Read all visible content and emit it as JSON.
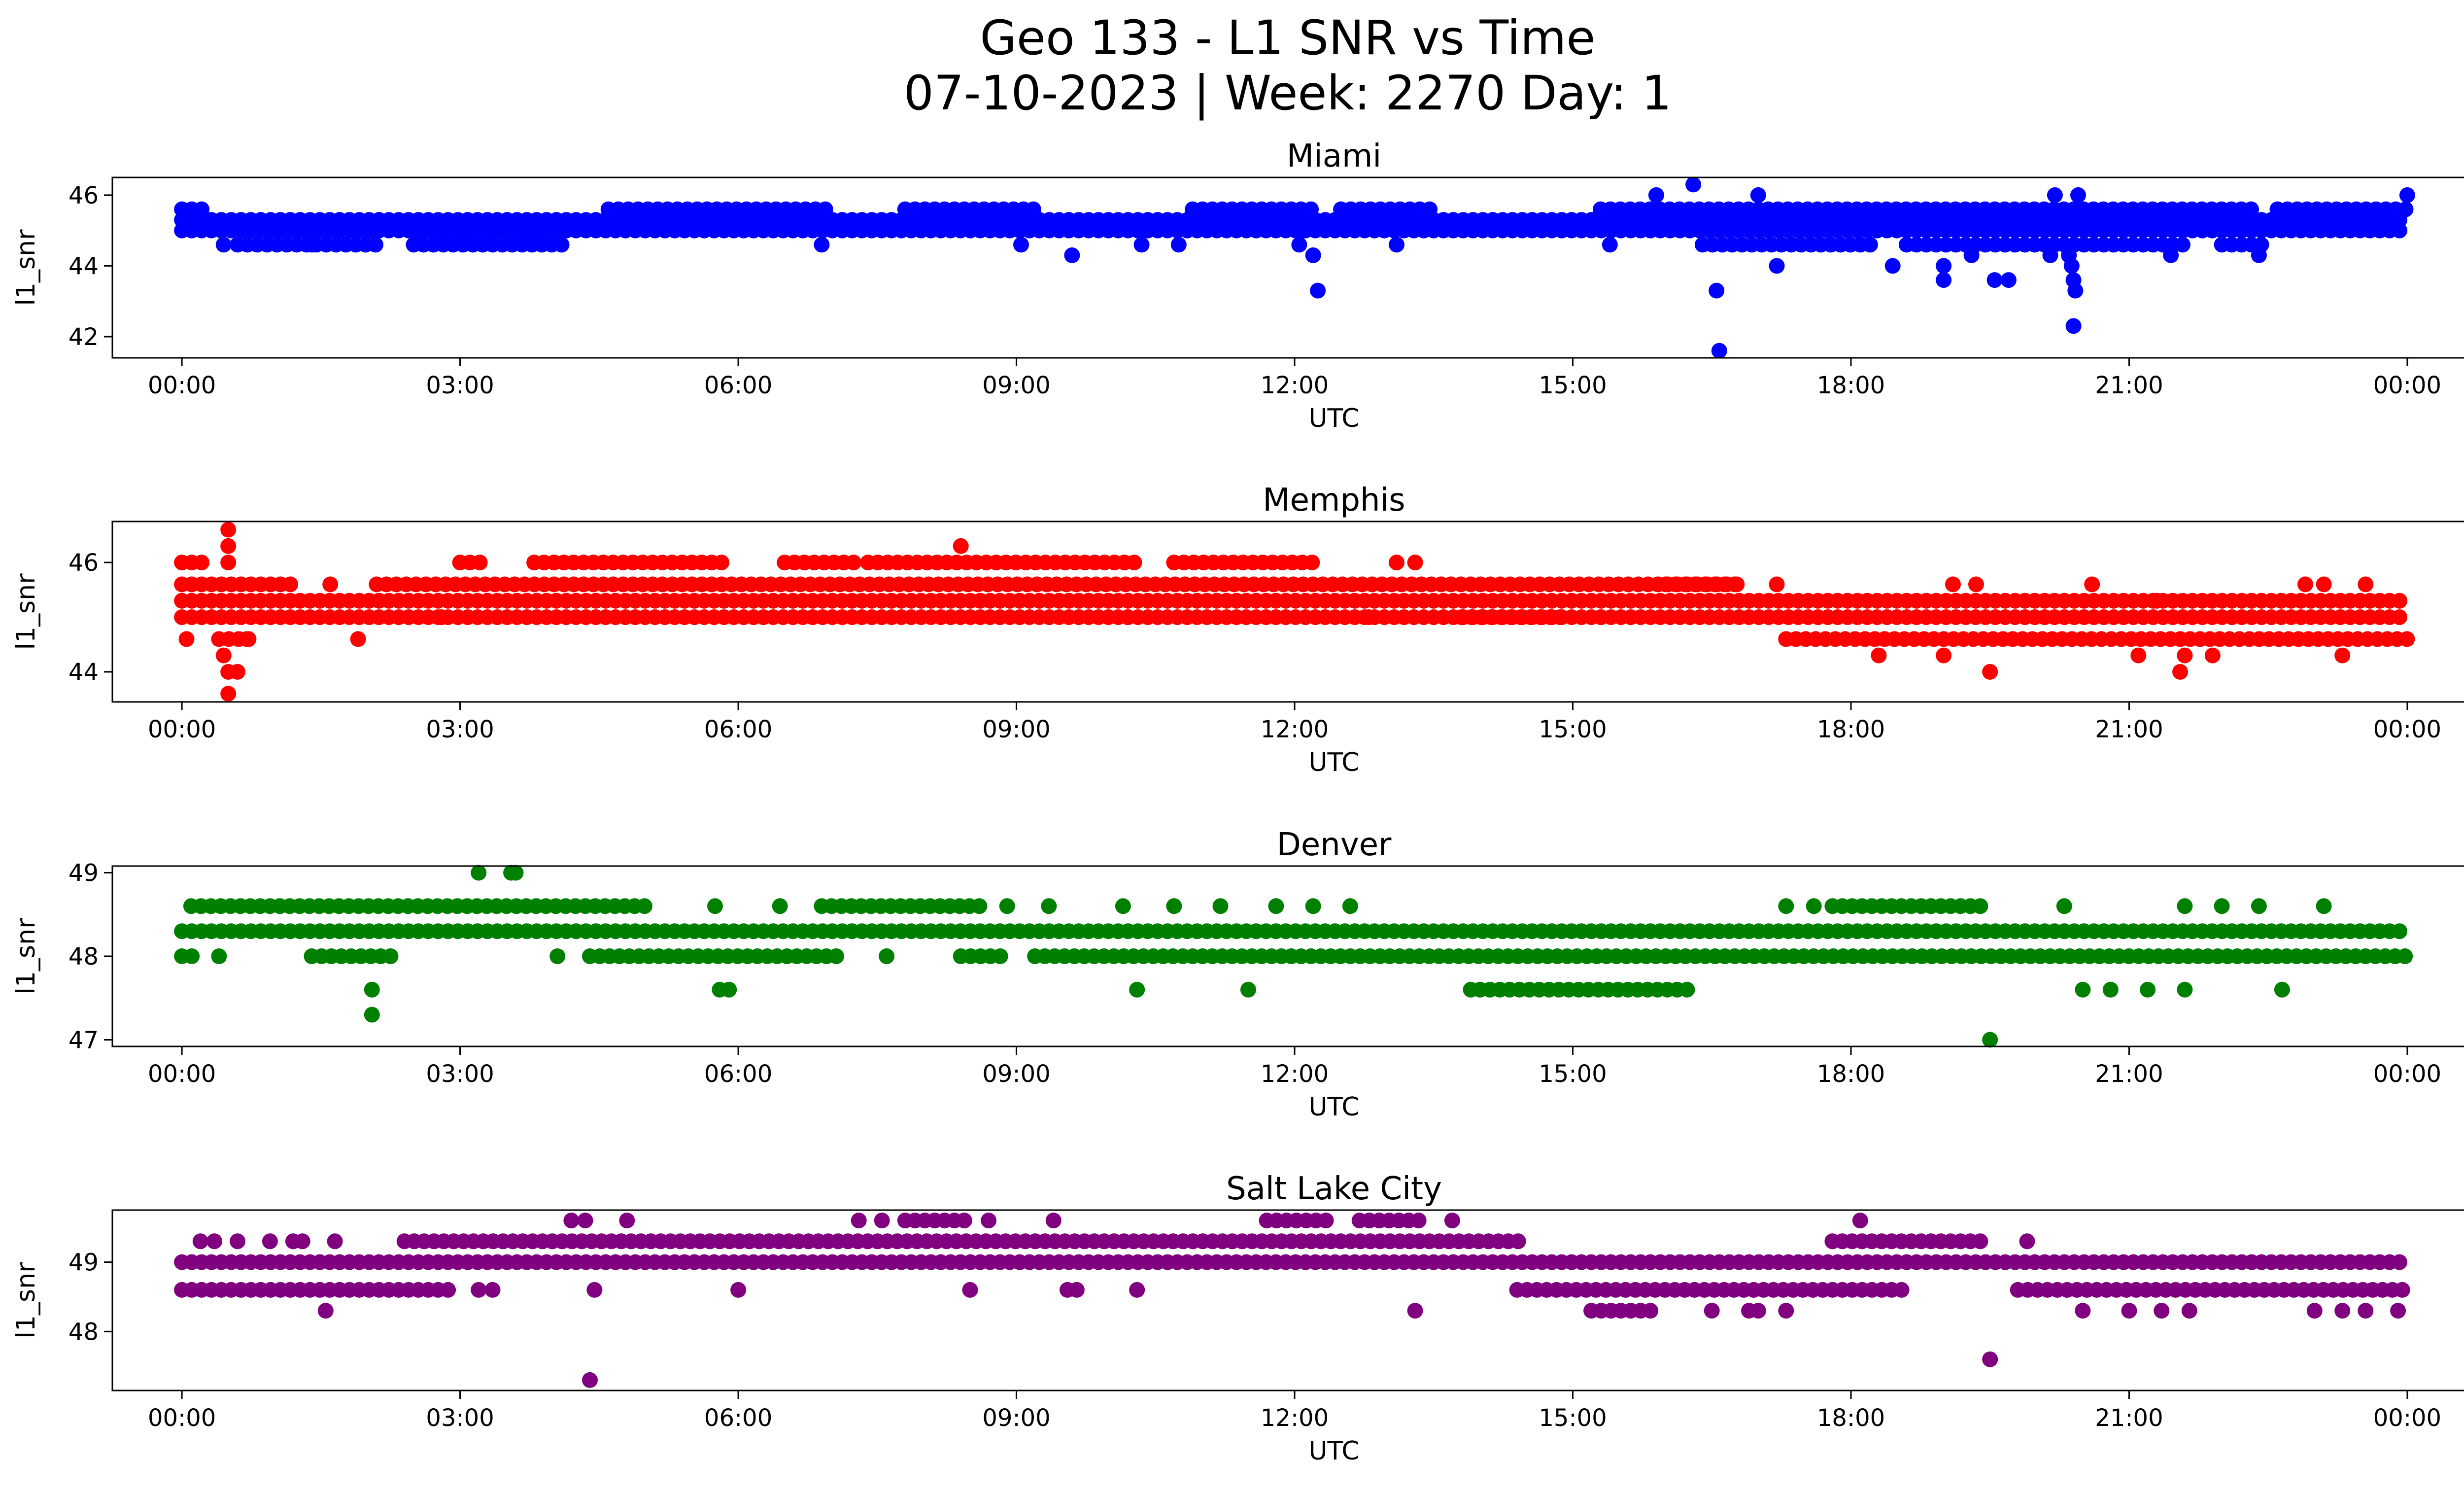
{
  "figure": {
    "title_line1": "Geo 133 - L1 SNR vs Time",
    "title_line2": "07-10-2023 | Week: 2270 Day: 1"
  },
  "chart_data": [
    {
      "type": "scatter",
      "title": "Miami",
      "xlabel": "UTC",
      "ylabel": "l1_snr",
      "color": "#0000ff",
      "xlim": [
        -0.75,
        25.6
      ],
      "ylim": [
        41.4,
        46.5
      ],
      "xticks": [
        0,
        3,
        6,
        9,
        12,
        15,
        18,
        21,
        24
      ],
      "xtick_labels": [
        "00:00",
        "03:00",
        "06:00",
        "09:00",
        "12:00",
        "15:00",
        "18:00",
        "21:00",
        "00:00"
      ],
      "yticks": [
        42,
        44,
        46
      ],
      "ytick_labels": [
        "42",
        "44",
        "46"
      ],
      "bands": [
        {
          "y": 45.0,
          "from": 0,
          "to": 24
        },
        {
          "y": 45.3,
          "from": 0,
          "to": 24
        },
        {
          "y": 45.6,
          "from": 0,
          "to": 0.3
        },
        {
          "y": 45.6,
          "from": 4.6,
          "to": 7.0
        },
        {
          "y": 45.6,
          "from": 7.8,
          "to": 9.2
        },
        {
          "y": 45.6,
          "from": 10.9,
          "to": 12.2
        },
        {
          "y": 45.6,
          "from": 12.5,
          "to": 13.5
        },
        {
          "y": 45.6,
          "from": 15.3,
          "to": 22.4
        },
        {
          "y": 45.6,
          "from": 22.6,
          "to": 24
        },
        {
          "y": 44.6,
          "from": 0.6,
          "to": 2.1
        },
        {
          "y": 44.6,
          "from": 2.5,
          "to": 4.2
        },
        {
          "y": 44.6,
          "from": 16.4,
          "to": 18.3
        },
        {
          "y": 44.6,
          "from": 18.6,
          "to": 21.6
        },
        {
          "y": 44.6,
          "from": 22.0,
          "to": 22.5
        }
      ],
      "points": [
        [
          0.45,
          44.6
        ],
        [
          1.4,
          44.6
        ],
        [
          6.9,
          44.6
        ],
        [
          9.05,
          44.6
        ],
        [
          9.6,
          44.3
        ],
        [
          10.35,
          44.6
        ],
        [
          10.75,
          44.6
        ],
        [
          12.05,
          44.6
        ],
        [
          12.2,
          44.3
        ],
        [
          12.25,
          43.3
        ],
        [
          13.1,
          44.6
        ],
        [
          15.4,
          44.6
        ],
        [
          15.9,
          46.0
        ],
        [
          16.3,
          46.3
        ],
        [
          16.55,
          43.3
        ],
        [
          16.58,
          41.6
        ],
        [
          17.0,
          46.0
        ],
        [
          17.2,
          44.0
        ],
        [
          18.45,
          44.0
        ],
        [
          19.0,
          44.0
        ],
        [
          19.0,
          43.6
        ],
        [
          19.3,
          44.3
        ],
        [
          19.55,
          43.6
        ],
        [
          19.7,
          43.6
        ],
        [
          20.15,
          44.3
        ],
        [
          20.35,
          44.3
        ],
        [
          20.38,
          44.0
        ],
        [
          20.4,
          43.6
        ],
        [
          20.42,
          43.3
        ],
        [
          20.4,
          42.3
        ],
        [
          20.2,
          46.0
        ],
        [
          20.45,
          46.0
        ],
        [
          21.45,
          44.3
        ],
        [
          22.4,
          44.3
        ],
        [
          24.0,
          46.0
        ]
      ]
    },
    {
      "type": "scatter",
      "title": "Memphis",
      "xlabel": "UTC",
      "ylabel": "l1_snr",
      "color": "#ff0000",
      "xlim": [
        -0.75,
        25.6
      ],
      "ylim": [
        43.45,
        46.75
      ],
      "xticks": [
        0,
        3,
        6,
        9,
        12,
        15,
        18,
        21,
        24
      ],
      "xtick_labels": [
        "00:00",
        "03:00",
        "06:00",
        "09:00",
        "12:00",
        "15:00",
        "18:00",
        "21:00",
        "00:00"
      ],
      "yticks": [
        44,
        46
      ],
      "ytick_labels": [
        "44",
        "46"
      ],
      "bands": [
        {
          "y": 45.0,
          "from": 0,
          "to": 24
        },
        {
          "y": 45.3,
          "from": 0,
          "to": 24
        },
        {
          "y": 45.6,
          "from": 0,
          "to": 1.2
        },
        {
          "y": 45.6,
          "from": 2.1,
          "to": 16.8
        },
        {
          "y": 44.6,
          "from": 17.3,
          "to": 24
        },
        {
          "y": 46.0,
          "from": 3.8,
          "to": 5.9
        },
        {
          "y": 46.0,
          "from": 6.5,
          "to": 7.3
        },
        {
          "y": 46.0,
          "from": 7.4,
          "to": 10.3
        },
        {
          "y": 46.0,
          "from": 10.7,
          "to": 12.2
        },
        {
          "y": 44.6,
          "from": 0.4,
          "to": 0.8
        },
        {
          "y": 45.0,
          "from": 13.8,
          "to": 14.9
        },
        {
          "y": 46.0,
          "from": 0,
          "to": 0.25
        },
        {
          "y": 45.6,
          "from": 16.0,
          "to": 16.8
        },
        {
          "y": 46.0,
          "from": 3.0,
          "to": 3.3
        }
      ],
      "points": [
        [
          0.05,
          44.6
        ],
        [
          0.45,
          44.3
        ],
        [
          0.5,
          44.0
        ],
        [
          0.5,
          46.0
        ],
        [
          0.5,
          46.3
        ],
        [
          0.5,
          46.6
        ],
        [
          0.5,
          43.6
        ],
        [
          0.6,
          44.0
        ],
        [
          0.7,
          44.6
        ],
        [
          1.6,
          45.6
        ],
        [
          1.9,
          44.6
        ],
        [
          2.8,
          45.0
        ],
        [
          8.4,
          46.3
        ],
        [
          10.2,
          45.0
        ],
        [
          12.8,
          45.0
        ],
        [
          13.1,
          46.0
        ],
        [
          13.3,
          46.0
        ],
        [
          15.3,
          45.0
        ],
        [
          17.2,
          45.6
        ],
        [
          17.3,
          44.6
        ],
        [
          18.3,
          44.3
        ],
        [
          19.0,
          44.3
        ],
        [
          19.1,
          45.6
        ],
        [
          19.35,
          45.6
        ],
        [
          19.5,
          44.0
        ],
        [
          20.6,
          45.6
        ],
        [
          21.3,
          45.3
        ],
        [
          21.1,
          44.3
        ],
        [
          21.55,
          44.0
        ],
        [
          21.6,
          44.3
        ],
        [
          21.9,
          44.3
        ],
        [
          22.9,
          45.6
        ],
        [
          23.1,
          45.6
        ],
        [
          23.55,
          45.6
        ],
        [
          23.3,
          44.3
        ]
      ]
    },
    {
      "type": "scatter",
      "title": "Denver",
      "xlabel": "UTC",
      "ylabel": "l1_snr",
      "color": "#008000",
      "xlim": [
        -0.75,
        25.6
      ],
      "ylim": [
        46.92,
        49.08
      ],
      "xticks": [
        0,
        3,
        6,
        9,
        12,
        15,
        18,
        21,
        24
      ],
      "xtick_labels": [
        "00:00",
        "03:00",
        "06:00",
        "09:00",
        "12:00",
        "15:00",
        "18:00",
        "21:00",
        "00:00"
      ],
      "yticks": [
        47,
        48,
        49
      ],
      "ytick_labels": [
        "47",
        "48",
        "49"
      ],
      "bands": [
        {
          "y": 48.3,
          "from": 0,
          "to": 24
        },
        {
          "y": 48.0,
          "from": 4.4,
          "to": 7.1
        },
        {
          "y": 48.0,
          "from": 9.2,
          "to": 24
        },
        {
          "y": 48.6,
          "from": 0.1,
          "to": 5.0
        },
        {
          "y": 48.6,
          "from": 6.9,
          "to": 8.7
        },
        {
          "y": 48.6,
          "from": 17.8,
          "to": 19.4
        },
        {
          "y": 47.6,
          "from": 14.0,
          "to": 16.3
        },
        {
          "y": 48.0,
          "from": 1.4,
          "to": 2.3
        },
        {
          "y": 48.0,
          "from": 8.4,
          "to": 8.9
        },
        {
          "y": 48.0,
          "from": 0,
          "to": 0.2
        }
      ],
      "points": [
        [
          0.4,
          48.0
        ],
        [
          2.05,
          47.6
        ],
        [
          2.05,
          47.3
        ],
        [
          3.2,
          49.0
        ],
        [
          3.55,
          49.0
        ],
        [
          3.6,
          49.0
        ],
        [
          4.05,
          48.0
        ],
        [
          5.75,
          48.6
        ],
        [
          5.8,
          47.6
        ],
        [
          5.9,
          47.6
        ],
        [
          6.45,
          48.6
        ],
        [
          7.6,
          48.0
        ],
        [
          8.9,
          48.6
        ],
        [
          9.35,
          48.6
        ],
        [
          10.15,
          48.6
        ],
        [
          10.3,
          47.6
        ],
        [
          10.7,
          48.6
        ],
        [
          11.2,
          48.6
        ],
        [
          11.5,
          47.6
        ],
        [
          11.8,
          48.6
        ],
        [
          12.2,
          48.6
        ],
        [
          12.6,
          48.6
        ],
        [
          13.9,
          47.6
        ],
        [
          17.3,
          48.6
        ],
        [
          17.6,
          48.6
        ],
        [
          19.5,
          47.0
        ],
        [
          20.3,
          48.6
        ],
        [
          20.5,
          47.6
        ],
        [
          20.8,
          47.6
        ],
        [
          21.2,
          47.6
        ],
        [
          21.6,
          47.6
        ],
        [
          21.6,
          48.6
        ],
        [
          22.0,
          48.6
        ],
        [
          22.4,
          48.6
        ],
        [
          22.65,
          47.6
        ],
        [
          23.1,
          48.6
        ]
      ]
    },
    {
      "type": "scatter",
      "title": "Salt Lake City",
      "xlabel": "UTC",
      "ylabel": "l1_snr",
      "color": "#800080",
      "xlim": [
        -0.75,
        25.6
      ],
      "ylim": [
        47.15,
        49.75
      ],
      "xticks": [
        0,
        3,
        6,
        9,
        12,
        15,
        18,
        21,
        24
      ],
      "xtick_labels": [
        "00:00",
        "03:00",
        "06:00",
        "09:00",
        "12:00",
        "15:00",
        "18:00",
        "21:00",
        "00:00"
      ],
      "yticks": [
        48,
        49
      ],
      "ytick_labels": [
        "48",
        "49"
      ],
      "bands": [
        {
          "y": 49.0,
          "from": 0,
          "to": 24
        },
        {
          "y": 48.6,
          "from": 0,
          "to": 2.9
        },
        {
          "y": 48.6,
          "from": 14.4,
          "to": 18.6
        },
        {
          "y": 48.6,
          "from": 19.8,
          "to": 24
        },
        {
          "y": 49.3,
          "from": 2.4,
          "to": 14.5
        },
        {
          "y": 49.3,
          "from": 17.8,
          "to": 19.5
        },
        {
          "y": 48.3,
          "from": 15.2,
          "to": 15.9
        },
        {
          "y": 49.6,
          "from": 7.8,
          "to": 8.5
        },
        {
          "y": 49.6,
          "from": 11.7,
          "to": 12.4
        },
        {
          "y": 49.6,
          "from": 12.7,
          "to": 13.4
        }
      ],
      "points": [
        [
          0.2,
          49.3
        ],
        [
          0.35,
          49.3
        ],
        [
          0.6,
          49.3
        ],
        [
          0.95,
          49.3
        ],
        [
          1.2,
          49.3
        ],
        [
          1.3,
          49.3
        ],
        [
          1.55,
          48.3
        ],
        [
          1.65,
          49.3
        ],
        [
          3.2,
          48.6
        ],
        [
          3.35,
          48.6
        ],
        [
          4.2,
          49.6
        ],
        [
          4.35,
          49.6
        ],
        [
          4.4,
          47.3
        ],
        [
          4.45,
          48.6
        ],
        [
          4.8,
          49.6
        ],
        [
          6.0,
          48.6
        ],
        [
          7.3,
          49.6
        ],
        [
          7.55,
          49.6
        ],
        [
          8.7,
          49.6
        ],
        [
          8.5,
          48.6
        ],
        [
          9.4,
          49.6
        ],
        [
          9.55,
          48.6
        ],
        [
          9.65,
          48.6
        ],
        [
          10.3,
          48.6
        ],
        [
          13.3,
          48.3
        ],
        [
          13.7,
          49.6
        ],
        [
          16.5,
          48.3
        ],
        [
          16.9,
          48.3
        ],
        [
          17.0,
          48.3
        ],
        [
          17.3,
          48.3
        ],
        [
          18.1,
          49.6
        ],
        [
          19.5,
          47.6
        ],
        [
          19.9,
          49.3
        ],
        [
          20.5,
          48.3
        ],
        [
          21.0,
          48.3
        ],
        [
          21.35,
          48.3
        ],
        [
          21.65,
          48.3
        ],
        [
          23.0,
          48.3
        ],
        [
          23.3,
          48.3
        ],
        [
          23.55,
          48.3
        ],
        [
          23.9,
          48.3
        ]
      ]
    }
  ]
}
